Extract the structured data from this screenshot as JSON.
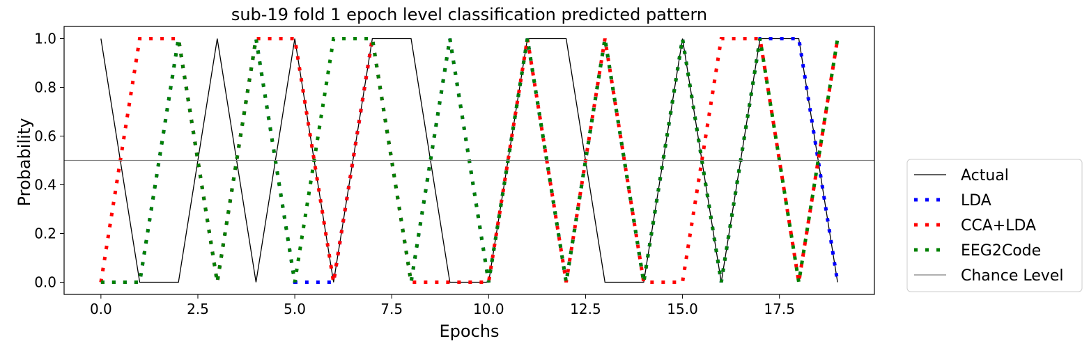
{
  "chart_data": {
    "type": "line",
    "title": "sub-19 fold 1 epoch level classification predicted pattern",
    "xlabel": "Epochs",
    "ylabel": "Probability",
    "xlim": [
      -0.95,
      19.95
    ],
    "ylim": [
      -0.05,
      1.05
    ],
    "xticks": [
      0.0,
      2.5,
      5.0,
      7.5,
      10.0,
      12.5,
      15.0,
      17.5
    ],
    "xtick_labels": [
      "0.0",
      "2.5",
      "5.0",
      "7.5",
      "10.0",
      "12.5",
      "15.0",
      "17.5"
    ],
    "yticks": [
      0.0,
      0.2,
      0.4,
      0.6,
      0.8,
      1.0
    ],
    "ytick_labels": [
      "0.0",
      "0.2",
      "0.4",
      "0.6",
      "0.8",
      "1.0"
    ],
    "grid": false,
    "legend_position": "outside-right-bottom",
    "chance_level": 0.5,
    "series": [
      {
        "name": "Actual",
        "color": "#000000",
        "style": "solid",
        "x": [
          0,
          1,
          2,
          3,
          4,
          5,
          6,
          7,
          8,
          9,
          10,
          11,
          12,
          13,
          14,
          15,
          16,
          17,
          18,
          19
        ],
        "y": [
          1,
          0,
          0,
          1,
          0,
          1,
          0,
          1,
          1,
          0,
          0,
          1,
          1,
          0,
          0,
          1,
          0,
          1,
          1,
          0
        ]
      },
      {
        "name": "LDA",
        "color": "#0000ff",
        "style": "dotted",
        "x": [
          0,
          1,
          2,
          3,
          4,
          5,
          6,
          7,
          8,
          9,
          10,
          11,
          12,
          13,
          14,
          15,
          16,
          17,
          18,
          19
        ],
        "y": [
          0,
          0,
          1,
          0,
          1,
          0,
          0,
          1,
          0,
          1,
          0,
          1,
          0,
          1,
          0,
          1,
          0,
          1,
          1,
          0
        ]
      },
      {
        "name": "CCA+LDA",
        "color": "#ff0000",
        "style": "dotted",
        "x": [
          0,
          1,
          2,
          3,
          4,
          5,
          6,
          7,
          8,
          9,
          10,
          11,
          12,
          13,
          14,
          15,
          16,
          17,
          18,
          19
        ],
        "y": [
          0,
          1,
          1,
          0,
          1,
          1,
          0,
          1,
          0,
          0,
          0,
          1,
          0,
          1,
          0,
          0,
          1,
          1,
          0,
          1
        ]
      },
      {
        "name": "EEG2Code",
        "color": "#008000",
        "style": "dotted",
        "x": [
          0,
          1,
          2,
          3,
          4,
          5,
          6,
          7,
          8,
          9,
          10,
          11,
          12,
          13,
          14,
          15,
          16,
          17,
          18,
          19
        ],
        "y": [
          0,
          0,
          1,
          0,
          1,
          0,
          1,
          1,
          0,
          1,
          0,
          1,
          0,
          1,
          0,
          1,
          0,
          1,
          0,
          1
        ]
      },
      {
        "name": "Chance Level",
        "color": "#808080",
        "style": "solid",
        "y": 0.5
      }
    ]
  }
}
